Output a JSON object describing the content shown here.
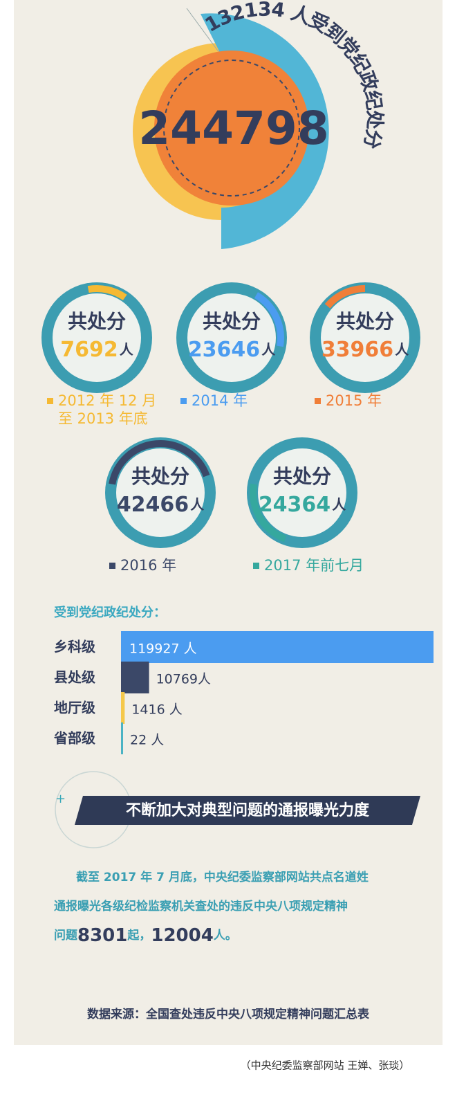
{
  "header": {
    "total": "244798",
    "arc_text": "132134 人受到党纪政纪处分"
  },
  "circles": [
    {
      "label": "共处分",
      "number": "7692",
      "unit": "人",
      "period": [
        "2012 年 12 月",
        "至 2013 年底"
      ],
      "color": "#f5b933"
    },
    {
      "label": "共处分",
      "number": "23646",
      "unit": "人",
      "period": [
        "2014 年"
      ],
      "color": "#4b9cf0"
    },
    {
      "label": "共处分",
      "number": "33966",
      "unit": "人",
      "period": [
        "2015 年"
      ],
      "color": "#f07e38"
    },
    {
      "label": "共处分",
      "number": "42466",
      "unit": "人",
      "period": [
        "2016 年"
      ],
      "color": "#3b4868"
    },
    {
      "label": "共处分",
      "number": "24364",
      "unit": "人",
      "period": [
        "2017 年前七月"
      ],
      "color": "#35a89e"
    }
  ],
  "chart_data": {
    "type": "bar",
    "orientation": "horizontal",
    "title": "受到党纪政纪处分：",
    "categories": [
      "乡科级",
      "县处级",
      "地厅级",
      "省部级"
    ],
    "values": [
      119927,
      10769,
      1416,
      22
    ],
    "value_labels": [
      "119927 人",
      "10769人",
      "1416 人",
      "22 人"
    ],
    "colors": [
      "#4b9cf0",
      "#3b4868",
      "#f5c84a",
      "#4bb3c4"
    ]
  },
  "section": {
    "heading": "不断加大对典型问题的通报曝光力度",
    "lines": [
      "截至 2017 年 7 月底，中央纪委监察部网站共点名道姓",
      "通报曝光各级纪检监察机关查处的违反中央八项规定精神"
    ],
    "last_line": [
      "问题",
      "8301",
      "起，",
      "12004",
      "人。"
    ]
  },
  "source": "数据来源：全国查处违反中央八项规定精神问题汇总表",
  "credit": "（中央纪委监察部网站 王婵、张琰）"
}
